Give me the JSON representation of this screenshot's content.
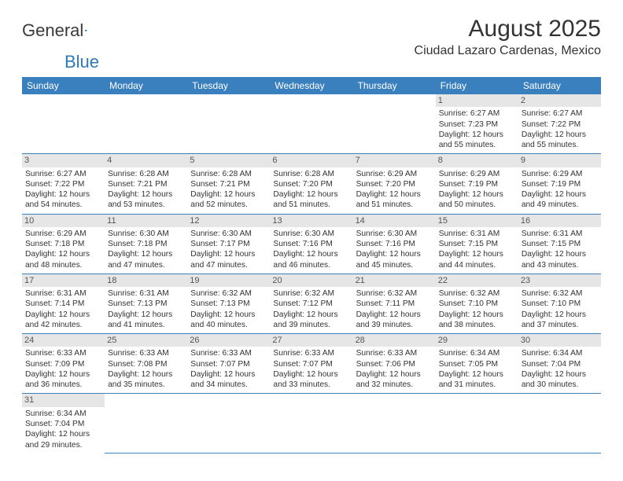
{
  "logo": {
    "text1": "General",
    "text2": "Blue"
  },
  "title": "August 2025",
  "location": "Ciudad Lazaro Cardenas, Mexico",
  "colors": {
    "header_bg": "#3a80bf",
    "header_text": "#ffffff",
    "daynum_bg": "#e6e6e6",
    "cell_border": "#3a80bf",
    "text": "#333333",
    "logo_blue": "#2f78b7"
  },
  "dayHeaders": [
    "Sunday",
    "Monday",
    "Tuesday",
    "Wednesday",
    "Thursday",
    "Friday",
    "Saturday"
  ],
  "leadingBlanks": 5,
  "days": [
    {
      "n": 1,
      "sr": "6:27 AM",
      "ss": "7:23 PM",
      "dl": "12 hours and 55 minutes."
    },
    {
      "n": 2,
      "sr": "6:27 AM",
      "ss": "7:22 PM",
      "dl": "12 hours and 55 minutes."
    },
    {
      "n": 3,
      "sr": "6:27 AM",
      "ss": "7:22 PM",
      "dl": "12 hours and 54 minutes."
    },
    {
      "n": 4,
      "sr": "6:28 AM",
      "ss": "7:21 PM",
      "dl": "12 hours and 53 minutes."
    },
    {
      "n": 5,
      "sr": "6:28 AM",
      "ss": "7:21 PM",
      "dl": "12 hours and 52 minutes."
    },
    {
      "n": 6,
      "sr": "6:28 AM",
      "ss": "7:20 PM",
      "dl": "12 hours and 51 minutes."
    },
    {
      "n": 7,
      "sr": "6:29 AM",
      "ss": "7:20 PM",
      "dl": "12 hours and 51 minutes."
    },
    {
      "n": 8,
      "sr": "6:29 AM",
      "ss": "7:19 PM",
      "dl": "12 hours and 50 minutes."
    },
    {
      "n": 9,
      "sr": "6:29 AM",
      "ss": "7:19 PM",
      "dl": "12 hours and 49 minutes."
    },
    {
      "n": 10,
      "sr": "6:29 AM",
      "ss": "7:18 PM",
      "dl": "12 hours and 48 minutes."
    },
    {
      "n": 11,
      "sr": "6:30 AM",
      "ss": "7:18 PM",
      "dl": "12 hours and 47 minutes."
    },
    {
      "n": 12,
      "sr": "6:30 AM",
      "ss": "7:17 PM",
      "dl": "12 hours and 47 minutes."
    },
    {
      "n": 13,
      "sr": "6:30 AM",
      "ss": "7:16 PM",
      "dl": "12 hours and 46 minutes."
    },
    {
      "n": 14,
      "sr": "6:30 AM",
      "ss": "7:16 PM",
      "dl": "12 hours and 45 minutes."
    },
    {
      "n": 15,
      "sr": "6:31 AM",
      "ss": "7:15 PM",
      "dl": "12 hours and 44 minutes."
    },
    {
      "n": 16,
      "sr": "6:31 AM",
      "ss": "7:15 PM",
      "dl": "12 hours and 43 minutes."
    },
    {
      "n": 17,
      "sr": "6:31 AM",
      "ss": "7:14 PM",
      "dl": "12 hours and 42 minutes."
    },
    {
      "n": 18,
      "sr": "6:31 AM",
      "ss": "7:13 PM",
      "dl": "12 hours and 41 minutes."
    },
    {
      "n": 19,
      "sr": "6:32 AM",
      "ss": "7:13 PM",
      "dl": "12 hours and 40 minutes."
    },
    {
      "n": 20,
      "sr": "6:32 AM",
      "ss": "7:12 PM",
      "dl": "12 hours and 39 minutes."
    },
    {
      "n": 21,
      "sr": "6:32 AM",
      "ss": "7:11 PM",
      "dl": "12 hours and 39 minutes."
    },
    {
      "n": 22,
      "sr": "6:32 AM",
      "ss": "7:10 PM",
      "dl": "12 hours and 38 minutes."
    },
    {
      "n": 23,
      "sr": "6:32 AM",
      "ss": "7:10 PM",
      "dl": "12 hours and 37 minutes."
    },
    {
      "n": 24,
      "sr": "6:33 AM",
      "ss": "7:09 PM",
      "dl": "12 hours and 36 minutes."
    },
    {
      "n": 25,
      "sr": "6:33 AM",
      "ss": "7:08 PM",
      "dl": "12 hours and 35 minutes."
    },
    {
      "n": 26,
      "sr": "6:33 AM",
      "ss": "7:07 PM",
      "dl": "12 hours and 34 minutes."
    },
    {
      "n": 27,
      "sr": "6:33 AM",
      "ss": "7:07 PM",
      "dl": "12 hours and 33 minutes."
    },
    {
      "n": 28,
      "sr": "6:33 AM",
      "ss": "7:06 PM",
      "dl": "12 hours and 32 minutes."
    },
    {
      "n": 29,
      "sr": "6:34 AM",
      "ss": "7:05 PM",
      "dl": "12 hours and 31 minutes."
    },
    {
      "n": 30,
      "sr": "6:34 AM",
      "ss": "7:04 PM",
      "dl": "12 hours and 30 minutes."
    },
    {
      "n": 31,
      "sr": "6:34 AM",
      "ss": "7:04 PM",
      "dl": "12 hours and 29 minutes."
    }
  ],
  "labels": {
    "sunrise": "Sunrise: ",
    "sunset": "Sunset: ",
    "daylight": "Daylight: "
  }
}
